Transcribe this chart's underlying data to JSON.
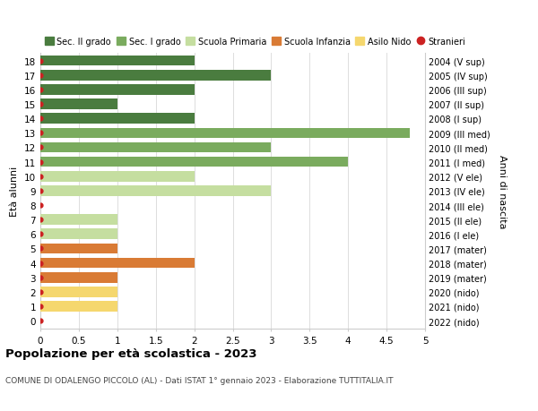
{
  "ages": [
    18,
    17,
    16,
    15,
    14,
    13,
    12,
    11,
    10,
    9,
    8,
    7,
    6,
    5,
    4,
    3,
    2,
    1,
    0
  ],
  "years": [
    "2004 (V sup)",
    "2005 (IV sup)",
    "2006 (III sup)",
    "2007 (II sup)",
    "2008 (I sup)",
    "2009 (III med)",
    "2010 (II med)",
    "2011 (I med)",
    "2012 (V ele)",
    "2013 (IV ele)",
    "2014 (III ele)",
    "2015 (II ele)",
    "2016 (I ele)",
    "2017 (mater)",
    "2018 (mater)",
    "2019 (mater)",
    "2020 (nido)",
    "2021 (nido)",
    "2022 (nido)"
  ],
  "bars": [
    {
      "age": 18,
      "value": 2,
      "color": "#4a7c3f"
    },
    {
      "age": 17,
      "value": 3,
      "color": "#4a7c3f"
    },
    {
      "age": 16,
      "value": 2,
      "color": "#4a7c3f"
    },
    {
      "age": 15,
      "value": 1,
      "color": "#4a7c3f"
    },
    {
      "age": 14,
      "value": 2,
      "color": "#4a7c3f"
    },
    {
      "age": 13,
      "value": 4.8,
      "color": "#7aab5e"
    },
    {
      "age": 12,
      "value": 3,
      "color": "#7aab5e"
    },
    {
      "age": 11,
      "value": 4,
      "color": "#7aab5e"
    },
    {
      "age": 10,
      "value": 2,
      "color": "#c5dea0"
    },
    {
      "age": 9,
      "value": 3,
      "color": "#c5dea0"
    },
    {
      "age": 8,
      "value": 0,
      "color": "#c5dea0"
    },
    {
      "age": 7,
      "value": 1,
      "color": "#c5dea0"
    },
    {
      "age": 6,
      "value": 1,
      "color": "#c5dea0"
    },
    {
      "age": 5,
      "value": 1,
      "color": "#d97b35"
    },
    {
      "age": 4,
      "value": 2,
      "color": "#d97b35"
    },
    {
      "age": 3,
      "value": 1,
      "color": "#d97b35"
    },
    {
      "age": 2,
      "value": 1,
      "color": "#f5d76e"
    },
    {
      "age": 1,
      "value": 1,
      "color": "#f5d76e"
    },
    {
      "age": 0,
      "value": 0,
      "color": "#f5d76e"
    }
  ],
  "stranieri_dot_color": "#cc2222",
  "legend_items": [
    {
      "label": "Sec. II grado",
      "color": "#4a7c3f",
      "type": "patch"
    },
    {
      "label": "Sec. I grado",
      "color": "#7aab5e",
      "type": "patch"
    },
    {
      "label": "Scuola Primaria",
      "color": "#c5dea0",
      "type": "patch"
    },
    {
      "label": "Scuola Infanzia",
      "color": "#d97b35",
      "type": "patch"
    },
    {
      "label": "Asilo Nido",
      "color": "#f5d76e",
      "type": "patch"
    },
    {
      "label": "Stranieri",
      "color": "#cc2222",
      "type": "dot"
    }
  ],
  "ylabel_left": "Età alunni",
  "ylabel_right": "Anni di nascita",
  "xlim": [
    0,
    5.0
  ],
  "xticks": [
    0,
    0.5,
    1.0,
    1.5,
    2.0,
    2.5,
    3.0,
    3.5,
    4.0,
    4.5,
    5.0
  ],
  "ylim_min": -0.55,
  "ylim_max": 18.55,
  "title": "Popolazione per età scolastica - 2023",
  "subtitle": "COMUNE DI ODALENGO PICCOLO (AL) - Dati ISTAT 1° gennaio 2023 - Elaborazione TUTTITALIA.IT",
  "bg_color": "#ffffff",
  "grid_color": "#dddddd",
  "bar_height": 0.72
}
